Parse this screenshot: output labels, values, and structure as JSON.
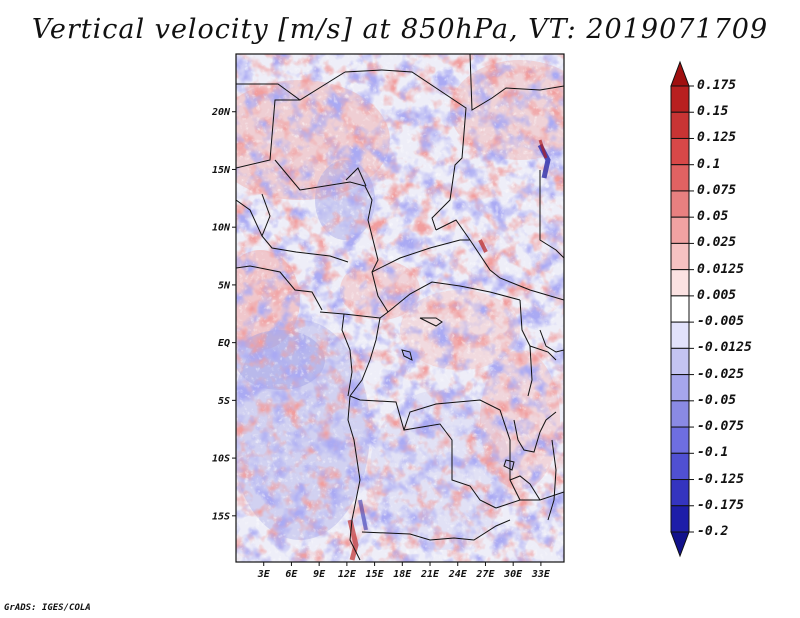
{
  "title": "Vertical velocity [m/s] at 850hPa, VT: 2019071709",
  "footer": "GrADS: IGES/COLA",
  "map": {
    "region": "Central Africa",
    "lon_range_deg": [
      0,
      35.5
    ],
    "lat_range_deg": [
      -19,
      25
    ],
    "lat_ticks": [
      {
        "value": 20,
        "label": "20N"
      },
      {
        "value": 15,
        "label": "15N"
      },
      {
        "value": 10,
        "label": "10N"
      },
      {
        "value": 5,
        "label": "5N"
      },
      {
        "value": 0,
        "label": "EQ"
      },
      {
        "value": -5,
        "label": "5S"
      },
      {
        "value": -10,
        "label": "10S"
      },
      {
        "value": -15,
        "label": "15S"
      }
    ],
    "lon_ticks": [
      {
        "value": 3,
        "label": "3E"
      },
      {
        "value": 6,
        "label": "6E"
      },
      {
        "value": 9,
        "label": "9E"
      },
      {
        "value": 12,
        "label": "12E"
      },
      {
        "value": 15,
        "label": "15E"
      },
      {
        "value": 18,
        "label": "18E"
      },
      {
        "value": 21,
        "label": "21E"
      },
      {
        "value": 24,
        "label": "24E"
      },
      {
        "value": 27,
        "label": "27E"
      },
      {
        "value": 30,
        "label": "30E"
      },
      {
        "value": 33,
        "label": "33E"
      }
    ]
  },
  "colorbar": {
    "levels": [
      "0.175",
      "0.15",
      "0.125",
      "0.1",
      "0.075",
      "0.05",
      "0.025",
      "0.0125",
      "0.005",
      "-0.005",
      "-0.0125",
      "-0.025",
      "-0.05",
      "-0.075",
      "-0.1",
      "-0.125",
      "-0.175",
      "-0.2"
    ],
    "colors": [
      "#a01010",
      "#b82020",
      "#c83434",
      "#d84848",
      "#e06262",
      "#e88080",
      "#f0a2a2",
      "#f6c2c2",
      "#fbe2e2",
      "#ffffff",
      "#e2e2fb",
      "#c4c4f2",
      "#a6a6ec",
      "#8a8ae4",
      "#6e6ee0",
      "#5050d2",
      "#3434c0",
      "#1e1ea8",
      "#12128c"
    ]
  }
}
